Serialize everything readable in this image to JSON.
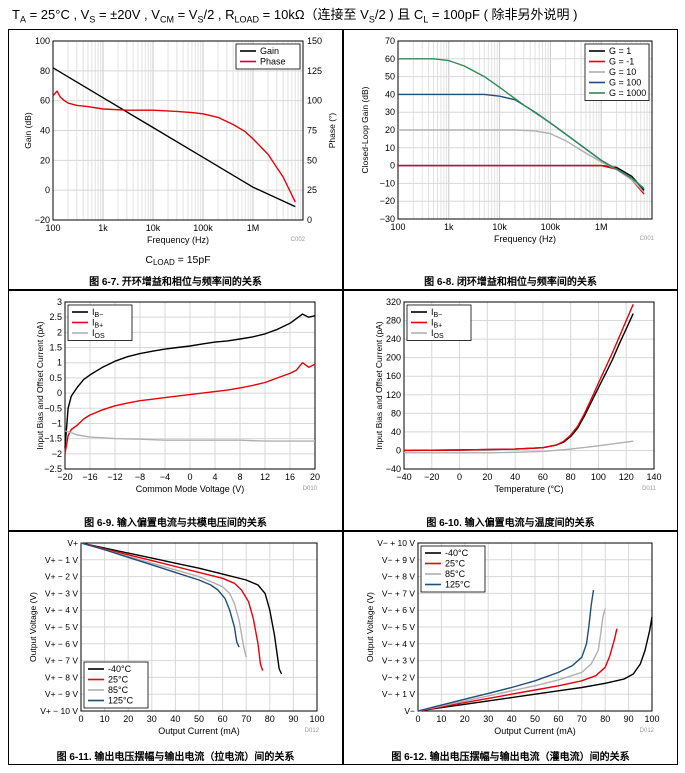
{
  "conditions": {
    "p1": "T",
    "p1_sub": "A",
    "p2": " = 25°C , V",
    "p2_sub": "S",
    "p3": " = ±20V , V",
    "p3_sub": "CM",
    "p4": " = V",
    "p4_sub": "S",
    "p5": "/2 , R",
    "p5_sub": "LOAD",
    "p6": " = 10kΩ（连接至 V",
    "p6_sub": "S",
    "p7": "/2 ) 且 C",
    "p7_sub": "L",
    "p8": " = 100pF ( 除非另外说明 )"
  },
  "chart_data": [
    {
      "id": "fig6-7",
      "type": "line",
      "caption": "图 6-7. 开环增益和相位与频率间的关系",
      "note": "C002",
      "annotation": {
        "text": "C",
        "sub": "LOAD",
        "rest": " = 15pF"
      },
      "xlabel": "Frequency (Hz)",
      "ylabel": "Gain (dB)",
      "ylabel2": "Phase (°)",
      "xscale": "log",
      "xlim": [
        100,
        10000000
      ],
      "xticks": [
        100,
        1000,
        10000,
        100000,
        1000000
      ],
      "xticklabels": [
        "100",
        "1k",
        "10k",
        "100k",
        "1M"
      ],
      "ylim": [
        -20,
        100
      ],
      "yticks": [
        -20,
        0,
        20,
        40,
        60,
        80,
        100
      ],
      "ylim2": [
        0,
        150
      ],
      "yticks2": [
        0,
        25,
        50,
        75,
        100,
        125,
        150
      ],
      "grid": true,
      "legend": "top-right",
      "series": [
        {
          "name": "Gain",
          "color": "#000000",
          "axis": "left",
          "x": [
            100,
            1000,
            10000,
            100000,
            1000000,
            7000000
          ],
          "y": [
            82,
            62,
            42,
            22,
            2,
            -11
          ]
        },
        {
          "name": "Phase",
          "color": "#e8000b",
          "axis": "right",
          "x": [
            100,
            120,
            140,
            170,
            200,
            300,
            500,
            1000,
            3000,
            10000,
            30000,
            60000,
            100000,
            200000,
            400000,
            700000,
            1000000,
            2000000,
            4000000,
            7000000
          ],
          "y": [
            104,
            108,
            103,
            100,
            98,
            96,
            95,
            93,
            92,
            92,
            91,
            90,
            89,
            86,
            80,
            74,
            68,
            55,
            36,
            15
          ]
        }
      ]
    },
    {
      "id": "fig6-8",
      "type": "line",
      "caption": "图 6-8. 闭环增益和相位与频率间的关系",
      "note": "C001",
      "xlabel": "Frequency (Hz)",
      "ylabel": "Closed-Loop Gain (dB)",
      "xscale": "log",
      "xlim": [
        100,
        10000000
      ],
      "xticks": [
        100,
        1000,
        10000,
        100000,
        1000000
      ],
      "xticklabels": [
        "100",
        "1k",
        "10k",
        "100k",
        "1M"
      ],
      "ylim": [
        -30,
        70
      ],
      "yticks": [
        -30,
        -20,
        -10,
        0,
        10,
        20,
        30,
        40,
        50,
        60,
        70
      ],
      "grid": true,
      "legend": "top-right",
      "series": [
        {
          "name": "G = 1",
          "color": "#000000",
          "x": [
            100,
            100000,
            1000000,
            2000000,
            4000000,
            7000000
          ],
          "y": [
            0,
            0,
            0,
            -1,
            -6,
            -14
          ]
        },
        {
          "name": "G = -1",
          "color": "#e8000b",
          "x": [
            100,
            100000,
            1000000,
            2000000,
            4000000,
            7000000
          ],
          "y": [
            0,
            0,
            0,
            -2,
            -8,
            -16
          ]
        },
        {
          "name": "G = 10",
          "color": "#b0b0b0",
          "x": [
            100,
            20000,
            50000,
            100000,
            200000,
            500000,
            1000000,
            2000000,
            4000000,
            7000000
          ],
          "y": [
            20,
            20,
            19.5,
            18,
            14,
            7,
            2,
            -2,
            -8,
            -15
          ]
        },
        {
          "name": "G = 100",
          "color": "#1f4e79",
          "x": [
            100,
            5000,
            10000,
            20000,
            50000,
            100000,
            300000,
            1000000,
            2000000,
            4000000,
            7000000
          ],
          "y": [
            40,
            40,
            39,
            37,
            30,
            24,
            14,
            3,
            -2,
            -7,
            -13
          ]
        },
        {
          "name": "G = 1000",
          "color": "#2e8b57",
          "x": [
            100,
            500,
            1000,
            2000,
            5000,
            10000,
            30000,
            100000,
            300000,
            1000000,
            2000000,
            4000000,
            7000000
          ],
          "y": [
            60,
            60,
            59,
            56,
            50,
            44,
            34,
            24,
            14,
            3,
            -2,
            -7,
            -13
          ]
        }
      ]
    },
    {
      "id": "fig6-9",
      "type": "line",
      "caption": "图 6-9. 输入偏置电流与共模电压间的关系",
      "note": "D010",
      "xlabel": "Common Mode Voltage (V)",
      "ylabel": "Input Bias and Offset Current (pA)",
      "xlim": [
        -20,
        20
      ],
      "xticks": [
        -20,
        -16,
        -12,
        -8,
        -4,
        0,
        4,
        8,
        12,
        16,
        20
      ],
      "ylim": [
        -2.5,
        3
      ],
      "yticks": [
        -2.5,
        -2,
        -1.5,
        -1,
        -0.5,
        0,
        0.5,
        1,
        1.5,
        2,
        2.5,
        3
      ],
      "grid": true,
      "legend": "top-left",
      "series": [
        {
          "name": "I",
          "sub": "B−",
          "color": "#000000",
          "x": [
            -20,
            -19.5,
            -19,
            -18,
            -17,
            -16,
            -14,
            -12,
            -10,
            -8,
            -6,
            -4,
            -2,
            0,
            2,
            4,
            6,
            8,
            10,
            12,
            14,
            16,
            17,
            18,
            19,
            20
          ],
          "y": [
            -1.8,
            -0.5,
            -0.1,
            0.2,
            0.45,
            0.6,
            0.85,
            1.05,
            1.2,
            1.3,
            1.38,
            1.45,
            1.5,
            1.55,
            1.62,
            1.68,
            1.72,
            1.78,
            1.85,
            1.95,
            2.1,
            2.3,
            2.45,
            2.6,
            2.5,
            2.55
          ]
        },
        {
          "name": "I",
          "sub": "B+",
          "color": "#e8000b",
          "x": [
            -20,
            -19.5,
            -19,
            -18,
            -17,
            -16,
            -14,
            -12,
            -10,
            -8,
            -6,
            -4,
            -2,
            0,
            2,
            4,
            6,
            8,
            10,
            12,
            14,
            16,
            17,
            18,
            19,
            20
          ],
          "y": [
            -2.0,
            -1.4,
            -1.2,
            -1.05,
            -0.85,
            -0.72,
            -0.55,
            -0.42,
            -0.33,
            -0.25,
            -0.2,
            -0.15,
            -0.1,
            -0.05,
            0.0,
            0.05,
            0.1,
            0.17,
            0.25,
            0.35,
            0.5,
            0.65,
            0.75,
            1.0,
            0.85,
            0.95
          ]
        },
        {
          "name": "I",
          "sub": "OS",
          "color": "#b0b0b0",
          "x": [
            -20,
            -19,
            -18,
            -16,
            -12,
            -8,
            -4,
            0,
            4,
            8,
            12,
            16,
            20
          ],
          "y": [
            -1.25,
            -1.3,
            -1.38,
            -1.45,
            -1.5,
            -1.52,
            -1.55,
            -1.55,
            -1.55,
            -1.55,
            -1.58,
            -1.58,
            -1.58
          ]
        }
      ]
    },
    {
      "id": "fig6-10",
      "type": "line",
      "caption": "图 6-10. 输入偏置电流与温度间的关系",
      "note": "D011",
      "xlabel": "Temperature (°C)",
      "ylabel": "Input Bias and Offset Current (pA)",
      "xlim": [
        -40,
        140
      ],
      "xticks": [
        -40,
        -20,
        0,
        20,
        40,
        60,
        80,
        100,
        120,
        140
      ],
      "ylim": [
        -40,
        320
      ],
      "yticks": [
        -40,
        0,
        40,
        80,
        120,
        160,
        200,
        240,
        280,
        320
      ],
      "grid": true,
      "legend": "top-left",
      "series": [
        {
          "name": "I",
          "sub": "B−",
          "color": "#000000",
          "x": [
            -40,
            0,
            40,
            60,
            70,
            75,
            80,
            85,
            90,
            95,
            100,
            105,
            110,
            115,
            120,
            125
          ],
          "y": [
            0,
            1,
            3,
            6,
            12,
            18,
            30,
            48,
            75,
            105,
            135,
            165,
            195,
            230,
            262,
            295
          ]
        },
        {
          "name": "I",
          "sub": "B+",
          "color": "#e8000b",
          "x": [
            -40,
            0,
            40,
            60,
            70,
            75,
            80,
            85,
            90,
            95,
            100,
            105,
            110,
            115,
            120,
            125
          ],
          "y": [
            0,
            1,
            3,
            6,
            12,
            20,
            33,
            52,
            80,
            112,
            145,
            178,
            210,
            245,
            280,
            315
          ]
        },
        {
          "name": "I",
          "sub": "OS",
          "color": "#b0b0b0",
          "x": [
            -40,
            0,
            20,
            40,
            60,
            80,
            100,
            125
          ],
          "y": [
            -5,
            -5,
            -5,
            -4,
            -2,
            3,
            10,
            20
          ]
        }
      ]
    },
    {
      "id": "fig6-11",
      "type": "line",
      "caption": "图 6-11. 输出电压摆幅与输出电流（拉电流）间的关系",
      "note": "D012",
      "xlabel": "Output Current (mA)",
      "ylabel": "Output Voltage (V)",
      "xlim": [
        0,
        100
      ],
      "xticks": [
        0,
        10,
        20,
        30,
        40,
        50,
        60,
        70,
        80,
        90,
        100
      ],
      "ylim": [
        -10,
        0
      ],
      "yticks": [
        0,
        -1,
        -2,
        -3,
        -4,
        -5,
        -6,
        -7,
        -8,
        -9,
        -10
      ],
      "yticklabels": [
        "V+",
        "V+ − 1 V",
        "V+ − 2 V",
        "V+ − 3 V",
        "V+ − 4 V",
        "V+ − 5 V",
        "V+ − 6 V",
        "V+ − 7 V",
        "V+ − 8 V",
        "V+ − 9 V",
        "V+ − 10 V"
      ],
      "grid": true,
      "legend": "bottom-left",
      "series": [
        {
          "name": "-40°C",
          "color": "#000000",
          "x": [
            0,
            10,
            20,
            30,
            40,
            50,
            60,
            70,
            75,
            78,
            80,
            82,
            84,
            85
          ],
          "y": [
            0,
            -0.3,
            -0.6,
            -0.9,
            -1.2,
            -1.5,
            -1.85,
            -2.2,
            -2.5,
            -3,
            -4,
            -5.5,
            -7.5,
            -7.8
          ]
        },
        {
          "name": "25°C",
          "color": "#e8000b",
          "x": [
            0,
            10,
            20,
            30,
            40,
            50,
            60,
            65,
            68,
            71,
            73,
            75,
            76,
            77
          ],
          "y": [
            0,
            -0.35,
            -0.7,
            -1.05,
            -1.4,
            -1.75,
            -2.1,
            -2.4,
            -2.8,
            -3.5,
            -4.5,
            -6,
            -7.2,
            -7.6
          ]
        },
        {
          "name": "85°C",
          "color": "#b0b0b0",
          "x": [
            0,
            10,
            20,
            30,
            40,
            50,
            55,
            60,
            63,
            65,
            67,
            69,
            70
          ],
          "y": [
            0,
            -0.4,
            -0.8,
            -1.2,
            -1.6,
            -2.0,
            -2.3,
            -2.6,
            -3.0,
            -3.6,
            -4.6,
            -6.2,
            -6.8
          ]
        },
        {
          "name": "125°C",
          "color": "#1f4e79",
          "x": [
            0,
            10,
            20,
            30,
            40,
            50,
            55,
            58,
            61,
            63,
            65,
            66,
            67
          ],
          "y": [
            0,
            -0.4,
            -0.85,
            -1.3,
            -1.75,
            -2.2,
            -2.5,
            -2.8,
            -3.3,
            -4.0,
            -5.0,
            -5.9,
            -6.2
          ]
        }
      ]
    },
    {
      "id": "fig6-12",
      "type": "line",
      "caption": "图 6-12. 输出电压摆幅与输出电流（灌电流）间的关系",
      "note": "D012",
      "xlabel": "Output Current (mA)",
      "ylabel": "Output Voltage (V)",
      "xlim": [
        0,
        100
      ],
      "xticks": [
        0,
        10,
        20,
        30,
        40,
        50,
        60,
        70,
        80,
        90,
        100
      ],
      "ylim": [
        0,
        10
      ],
      "yticks": [
        0,
        1,
        2,
        3,
        4,
        5,
        6,
        7,
        8,
        9,
        10
      ],
      "yticklabels": [
        "V−",
        "V− + 1 V",
        "V− + 2 V",
        "V− + 3 V",
        "V− + 4 V",
        "V− + 5 V",
        "V− + 6 V",
        "V− + 7 V",
        "V− + 8 V",
        "V− + 9 V",
        "V− + 10 V"
      ],
      "grid": true,
      "legend": "top-left",
      "series": [
        {
          "name": "-40°C",
          "color": "#000000",
          "x": [
            0,
            10,
            20,
            30,
            40,
            50,
            60,
            70,
            80,
            88,
            92,
            95,
            97,
            99,
            100
          ],
          "y": [
            0,
            0.2,
            0.4,
            0.6,
            0.8,
            1.0,
            1.2,
            1.4,
            1.65,
            1.9,
            2.2,
            2.8,
            3.6,
            4.8,
            5.6
          ]
        },
        {
          "name": "25°C",
          "color": "#e8000b",
          "x": [
            0,
            10,
            20,
            30,
            40,
            50,
            60,
            70,
            76,
            80,
            82,
            84,
            85
          ],
          "y": [
            0,
            0.25,
            0.5,
            0.75,
            1.0,
            1.25,
            1.5,
            1.8,
            2.1,
            2.6,
            3.3,
            4.3,
            4.9
          ]
        },
        {
          "name": "85°C",
          "color": "#b0b0b0",
          "x": [
            0,
            10,
            20,
            30,
            40,
            50,
            60,
            70,
            74,
            77,
            78,
            79,
            80
          ],
          "y": [
            0,
            0.3,
            0.6,
            0.9,
            1.2,
            1.5,
            1.85,
            2.3,
            2.8,
            3.6,
            4.5,
            5.6,
            6.1
          ]
        },
        {
          "name": "125°C",
          "color": "#1f4e79",
          "x": [
            0,
            10,
            20,
            30,
            40,
            50,
            60,
            66,
            70,
            72,
            73,
            74,
            75
          ],
          "y": [
            0,
            0.35,
            0.7,
            1.05,
            1.4,
            1.8,
            2.3,
            2.7,
            3.2,
            4.0,
            5.0,
            6.3,
            7.2
          ]
        }
      ]
    }
  ]
}
